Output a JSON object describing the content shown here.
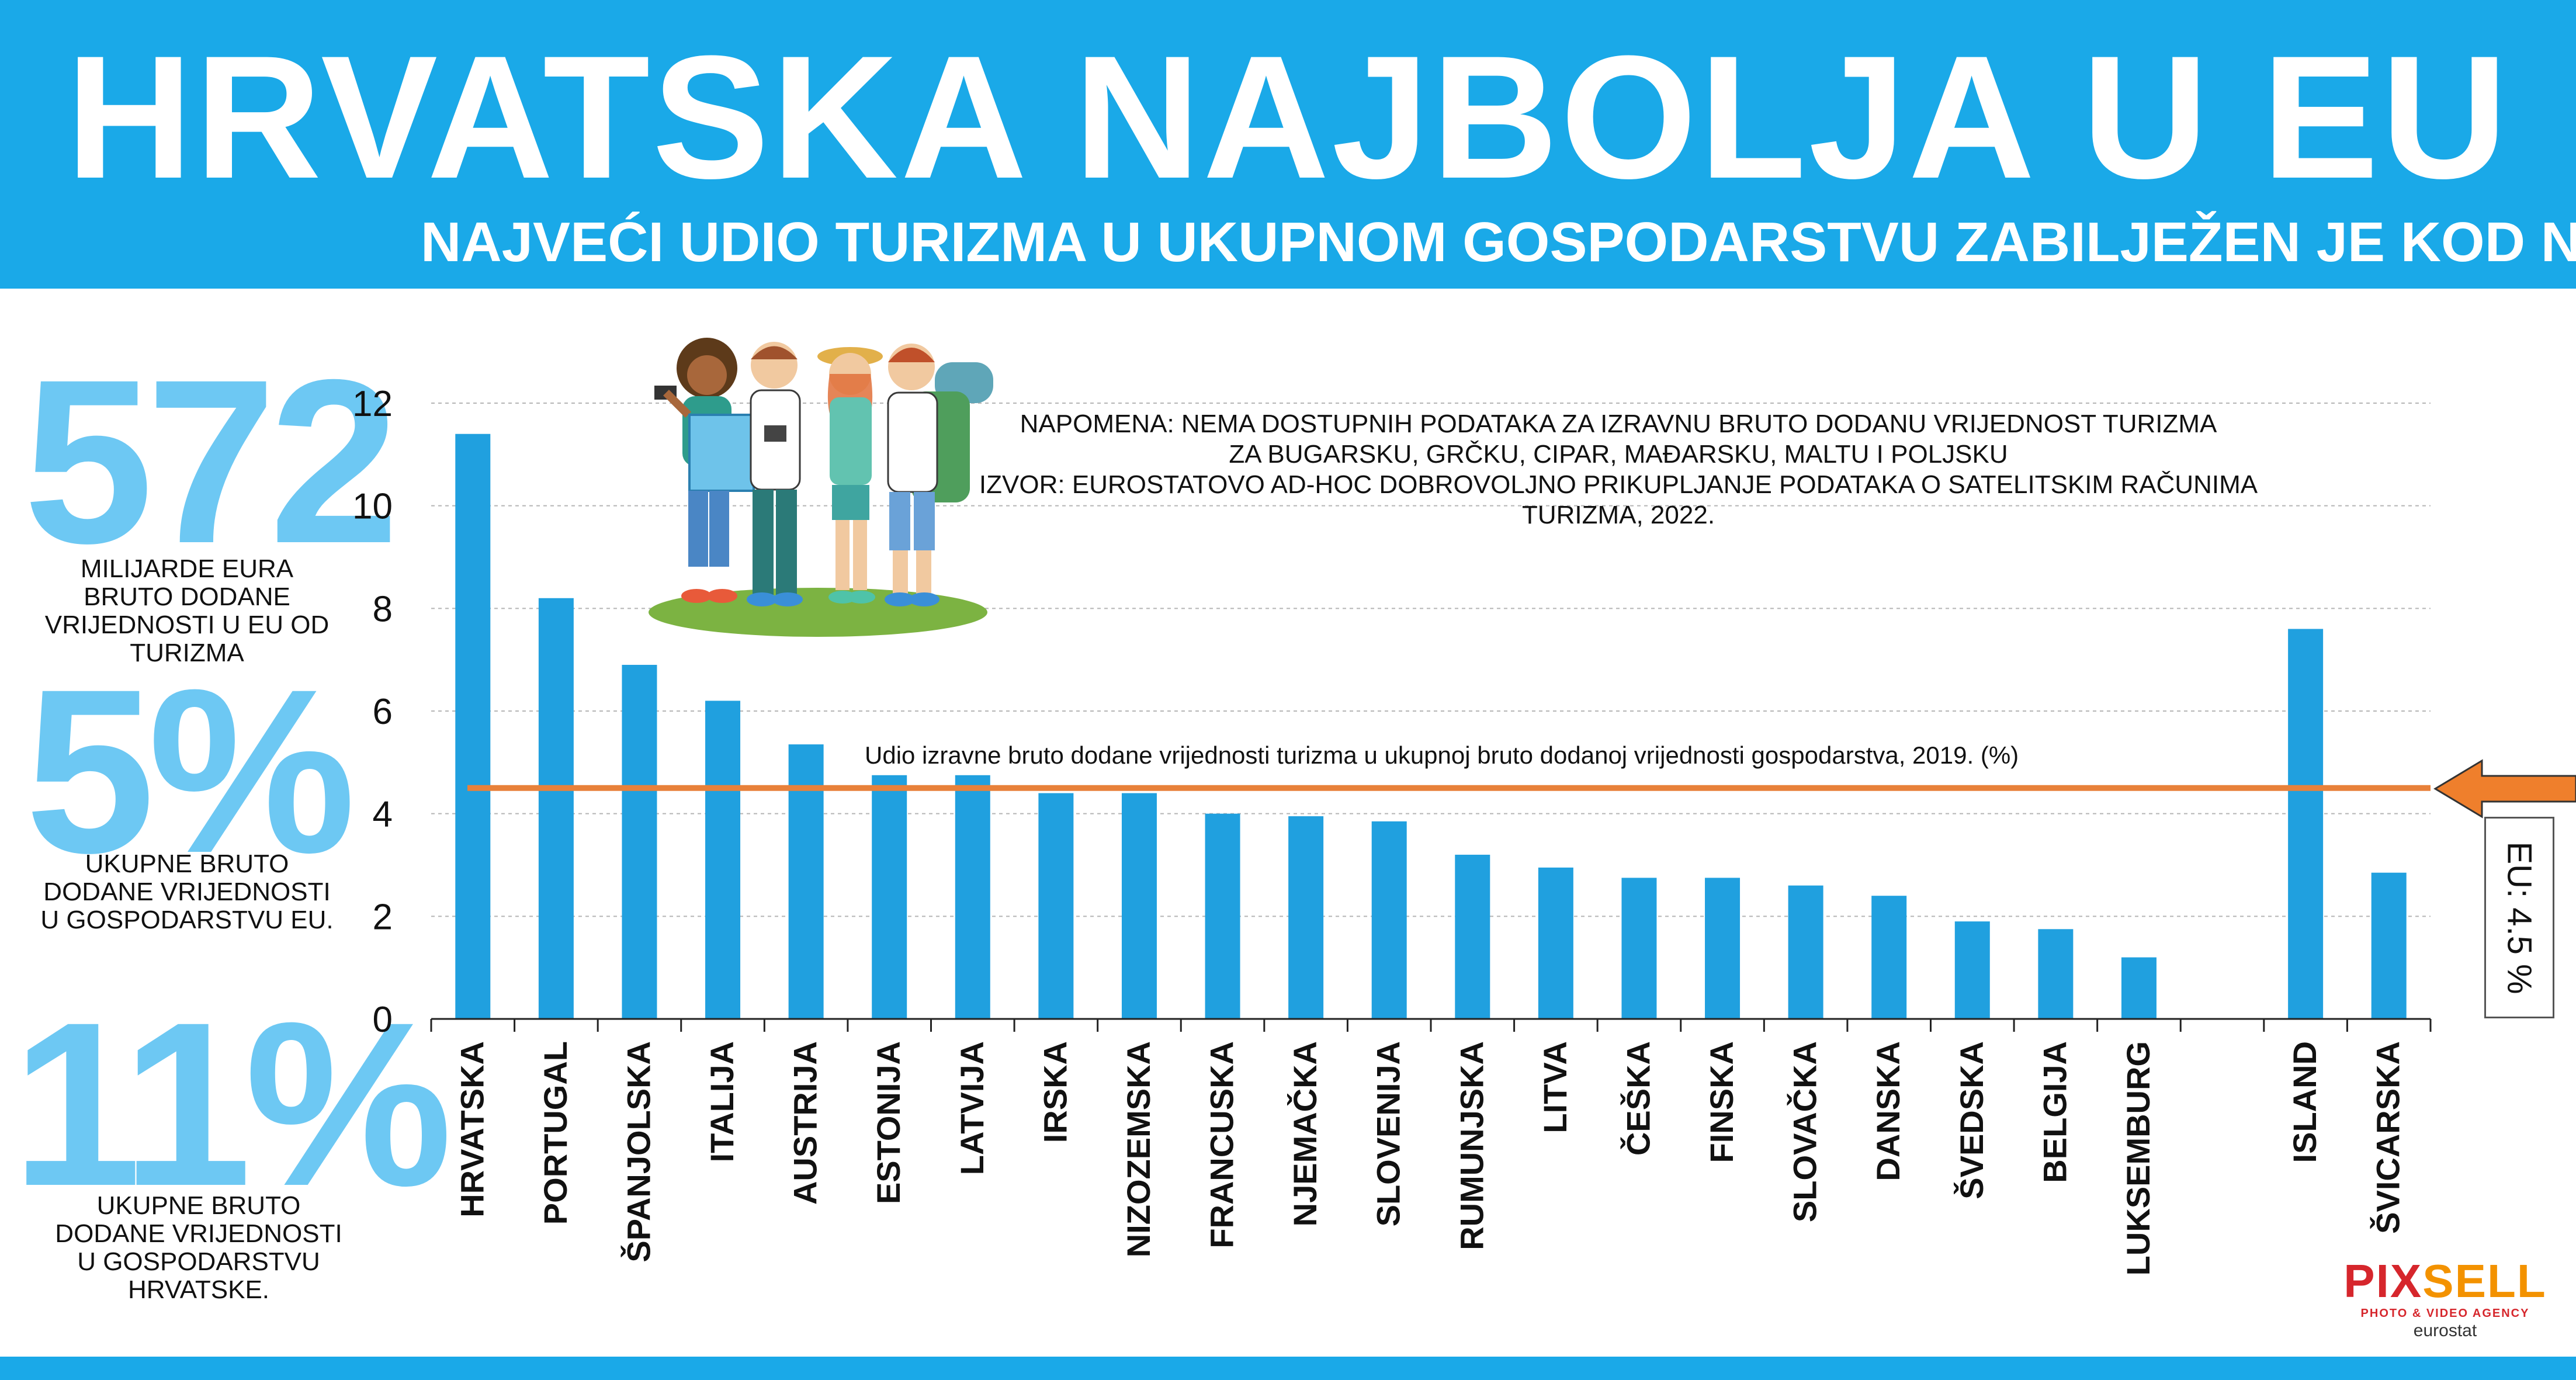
{
  "header": {
    "title": "HRVATSKA NAJBOLJA U EU",
    "subtitle": "NAJVEĆI UDIO TURIZMA U UKUPNOM GOSPODARSTVU ZABILJEŽEN JE KOD NAS"
  },
  "stats": [
    {
      "value": "572",
      "desc": "MILIJARDE EURA BRUTO DODANE VRIJEDNOSTI U EU OD TURIZMA"
    },
    {
      "value": "5%",
      "desc": "UKUPNE BRUTO DODANE VRIJEDNOSTI U GOSPODARSTVU EU."
    },
    {
      "value": "11%",
      "desc": "UKUPNE BRUTO DODANE VRIJEDNOSTI U GOSPODARSTVU HRVATSKE."
    }
  ],
  "note": {
    "line1": "NAPOMENA: NEMA DOSTUPNIH PODATAKA ZA IZRAVNU BRUTO DODANU VRIJEDNOST TURIZMA",
    "line2": "ZA BUGARSKU, GRČKU, CIPAR, MAĐARSKU, MALTU I POLJSKU",
    "line3": "IZVOR: EUROSTATOVO AD-HOC DOBROVOLJNO PRIKUPLJANJE PODATAKA O SATELITSKIM RAČUNIMA TURIZMA, 2022."
  },
  "eu_box_label": "EU: 4.5 %",
  "logo": {
    "brand_a": "PIX",
    "brand_b": "SELL",
    "tagline": "PHOTO & VIDEO AGENCY",
    "source": "eurostat"
  },
  "colors": {
    "header": "#1aa9e8",
    "bar": "#20a0df",
    "stat": "#6dc8f3",
    "reference_line": "#e8813a"
  },
  "chart_data": {
    "type": "bar",
    "title": "Udio izravne bruto dodane vrijednosti turizma u ukupnoj bruto dodanoj vrijednosti gospodarstva, 2019. (%)",
    "categories": [
      "HRVATSKA",
      "PORTUGAL",
      "ŠPANJOLSKA",
      "ITALIJA",
      "AUSTRIJA",
      "ESTONIJA",
      "LATVIJA",
      "IRSKA",
      "NIZOZEMSKA",
      "FRANCUSKA",
      "NJEMAČKA",
      "SLOVENIJA",
      "RUMUNJSKA",
      "LITVA",
      "ČEŠKA",
      "FINSKA",
      "SLOVAČKA",
      "DANSKA",
      "ŠVEDSKA",
      "BELGIJA",
      "LUKSEMBURG",
      "",
      "ISLAND",
      "ŠVICARSKA"
    ],
    "values": [
      11.4,
      8.2,
      6.9,
      6.2,
      5.35,
      4.75,
      4.75,
      4.4,
      4.4,
      4.0,
      3.95,
      3.85,
      3.2,
      2.95,
      2.75,
      2.75,
      2.6,
      2.4,
      1.9,
      1.75,
      1.2,
      null,
      7.6,
      2.85
    ],
    "reference_line": {
      "value": 4.5,
      "label": "EU: 4.5 %"
    },
    "ylim": [
      0,
      12
    ],
    "yticks": [
      0,
      2,
      4,
      6,
      8,
      10,
      12
    ],
    "grid": true
  }
}
